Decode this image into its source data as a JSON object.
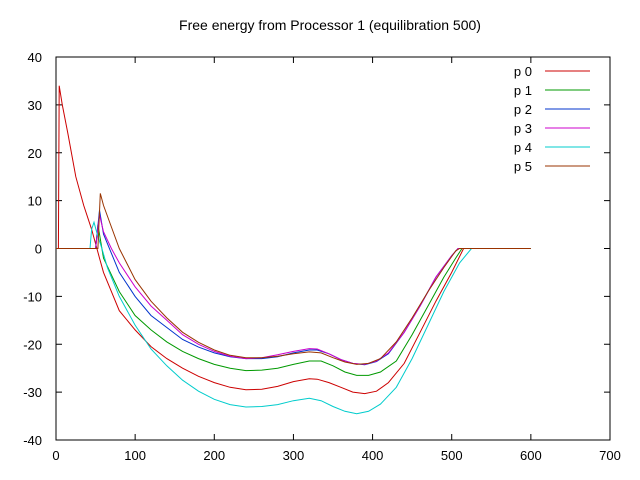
{
  "chart_data": {
    "type": "line",
    "title": "Free energy from Processor 1 (equilibration 500)",
    "xlabel": "",
    "ylabel": "",
    "xlim": [
      0,
      700
    ],
    "ylim": [
      -40,
      40
    ],
    "xticks": [
      0,
      100,
      200,
      300,
      400,
      500,
      600,
      700
    ],
    "yticks": [
      -40,
      -30,
      -20,
      -10,
      0,
      10,
      20,
      30,
      40
    ],
    "grid": false,
    "legend_position": "top-right",
    "series": [
      {
        "name": "p 0",
        "color": "#cc0000",
        "points": [
          [
            0,
            0
          ],
          [
            3,
            0
          ],
          [
            4,
            34
          ],
          [
            8,
            30
          ],
          [
            15,
            24
          ],
          [
            25,
            15
          ],
          [
            35,
            9
          ],
          [
            45,
            4
          ],
          [
            50,
            1
          ],
          [
            55,
            -2
          ],
          [
            60,
            -5
          ],
          [
            70,
            -9
          ],
          [
            80,
            -13
          ],
          [
            100,
            -17
          ],
          [
            120,
            -20.5
          ],
          [
            140,
            -23
          ],
          [
            160,
            -25
          ],
          [
            180,
            -26.7
          ],
          [
            200,
            -28
          ],
          [
            220,
            -29
          ],
          [
            240,
            -29.5
          ],
          [
            260,
            -29.4
          ],
          [
            280,
            -28.8
          ],
          [
            300,
            -27.8
          ],
          [
            320,
            -27.2
          ],
          [
            330,
            -27.3
          ],
          [
            345,
            -28
          ],
          [
            360,
            -29
          ],
          [
            375,
            -30
          ],
          [
            390,
            -30.3
          ],
          [
            405,
            -29.8
          ],
          [
            420,
            -28
          ],
          [
            440,
            -24
          ],
          [
            460,
            -17.5
          ],
          [
            480,
            -11
          ],
          [
            500,
            -5
          ],
          [
            515,
            0
          ],
          [
            530,
            0
          ],
          [
            600,
            0
          ]
        ]
      },
      {
        "name": "p 1",
        "color": "#009900",
        "points": [
          [
            0,
            0
          ],
          [
            50,
            0
          ],
          [
            53,
            5
          ],
          [
            60,
            -2
          ],
          [
            70,
            -5.5
          ],
          [
            80,
            -9
          ],
          [
            100,
            -14
          ],
          [
            120,
            -17
          ],
          [
            140,
            -19.5
          ],
          [
            160,
            -21.5
          ],
          [
            180,
            -23
          ],
          [
            200,
            -24.2
          ],
          [
            220,
            -25
          ],
          [
            240,
            -25.5
          ],
          [
            260,
            -25.4
          ],
          [
            280,
            -25
          ],
          [
            300,
            -24.2
          ],
          [
            320,
            -23.5
          ],
          [
            335,
            -23.5
          ],
          [
            350,
            -24.5
          ],
          [
            365,
            -25.8
          ],
          [
            380,
            -26.5
          ],
          [
            395,
            -26.5
          ],
          [
            410,
            -25.8
          ],
          [
            430,
            -23.5
          ],
          [
            450,
            -18
          ],
          [
            470,
            -12
          ],
          [
            490,
            -6
          ],
          [
            505,
            -2
          ],
          [
            513,
            0
          ],
          [
            530,
            0
          ],
          [
            600,
            0
          ]
        ]
      },
      {
        "name": "p 2",
        "color": "#0033cc",
        "points": [
          [
            0,
            0
          ],
          [
            50,
            0
          ],
          [
            55,
            8
          ],
          [
            60,
            3
          ],
          [
            70,
            -1
          ],
          [
            80,
            -5
          ],
          [
            100,
            -10
          ],
          [
            120,
            -14
          ],
          [
            140,
            -16.5
          ],
          [
            160,
            -19
          ],
          [
            180,
            -20.6
          ],
          [
            200,
            -21.8
          ],
          [
            220,
            -22.6
          ],
          [
            240,
            -23
          ],
          [
            260,
            -23
          ],
          [
            280,
            -22.6
          ],
          [
            300,
            -21.8
          ],
          [
            320,
            -21.2
          ],
          [
            330,
            -21.2
          ],
          [
            345,
            -22
          ],
          [
            360,
            -23.2
          ],
          [
            375,
            -24
          ],
          [
            390,
            -24.3
          ],
          [
            405,
            -23.6
          ],
          [
            420,
            -22
          ],
          [
            440,
            -17.5
          ],
          [
            460,
            -12
          ],
          [
            480,
            -6
          ],
          [
            500,
            -1.5
          ],
          [
            508,
            0
          ],
          [
            530,
            0
          ],
          [
            600,
            0
          ]
        ]
      },
      {
        "name": "p 3",
        "color": "#cc00cc",
        "points": [
          [
            0,
            0
          ],
          [
            50,
            0
          ],
          [
            55,
            7
          ],
          [
            60,
            3.5
          ],
          [
            70,
            0
          ],
          [
            80,
            -3
          ],
          [
            100,
            -8
          ],
          [
            120,
            -12
          ],
          [
            140,
            -15
          ],
          [
            160,
            -18
          ],
          [
            180,
            -20
          ],
          [
            200,
            -21.5
          ],
          [
            220,
            -22.5
          ],
          [
            240,
            -23
          ],
          [
            260,
            -22.8
          ],
          [
            280,
            -22.2
          ],
          [
            300,
            -21.5
          ],
          [
            320,
            -20.9
          ],
          [
            330,
            -21
          ],
          [
            345,
            -22
          ],
          [
            360,
            -23.2
          ],
          [
            375,
            -24
          ],
          [
            390,
            -24.2
          ],
          [
            405,
            -23.5
          ],
          [
            420,
            -21.8
          ],
          [
            440,
            -17.5
          ],
          [
            460,
            -12
          ],
          [
            480,
            -6
          ],
          [
            500,
            -1.5
          ],
          [
            508,
            0
          ],
          [
            530,
            0
          ],
          [
            600,
            0
          ]
        ]
      },
      {
        "name": "p 4",
        "color": "#00cccc",
        "points": [
          [
            0,
            0
          ],
          [
            43,
            0
          ],
          [
            45,
            4
          ],
          [
            48,
            5.5
          ],
          [
            52,
            3
          ],
          [
            58,
            0
          ],
          [
            65,
            -4
          ],
          [
            80,
            -10
          ],
          [
            100,
            -16
          ],
          [
            120,
            -21
          ],
          [
            140,
            -24.5
          ],
          [
            160,
            -27.5
          ],
          [
            180,
            -29.8
          ],
          [
            200,
            -31.5
          ],
          [
            220,
            -32.6
          ],
          [
            240,
            -33.1
          ],
          [
            260,
            -33
          ],
          [
            280,
            -32.6
          ],
          [
            300,
            -31.8
          ],
          [
            320,
            -31.3
          ],
          [
            335,
            -31.8
          ],
          [
            350,
            -33
          ],
          [
            365,
            -34
          ],
          [
            380,
            -34.5
          ],
          [
            395,
            -34
          ],
          [
            410,
            -32.5
          ],
          [
            430,
            -29
          ],
          [
            450,
            -23
          ],
          [
            470,
            -16
          ],
          [
            490,
            -9
          ],
          [
            510,
            -3
          ],
          [
            525,
            0
          ],
          [
            540,
            0
          ],
          [
            600,
            0
          ]
        ]
      },
      {
        "name": "p 5",
        "color": "#993300",
        "points": [
          [
            0,
            0
          ],
          [
            53,
            0
          ],
          [
            56,
            11.5
          ],
          [
            60,
            9
          ],
          [
            70,
            4.5
          ],
          [
            80,
            0
          ],
          [
            100,
            -6.5
          ],
          [
            120,
            -11
          ],
          [
            140,
            -14.5
          ],
          [
            160,
            -17.5
          ],
          [
            180,
            -19.6
          ],
          [
            200,
            -21.2
          ],
          [
            220,
            -22.3
          ],
          [
            240,
            -22.8
          ],
          [
            260,
            -22.8
          ],
          [
            280,
            -22.5
          ],
          [
            300,
            -22
          ],
          [
            320,
            -21.6
          ],
          [
            335,
            -21.8
          ],
          [
            350,
            -22.8
          ],
          [
            365,
            -23.7
          ],
          [
            380,
            -24.2
          ],
          [
            395,
            -24
          ],
          [
            410,
            -23
          ],
          [
            430,
            -19.5
          ],
          [
            450,
            -14.5
          ],
          [
            470,
            -9
          ],
          [
            490,
            -4
          ],
          [
            505,
            -0.5
          ],
          [
            510,
            0
          ],
          [
            530,
            0
          ],
          [
            600,
            0
          ]
        ]
      }
    ]
  }
}
